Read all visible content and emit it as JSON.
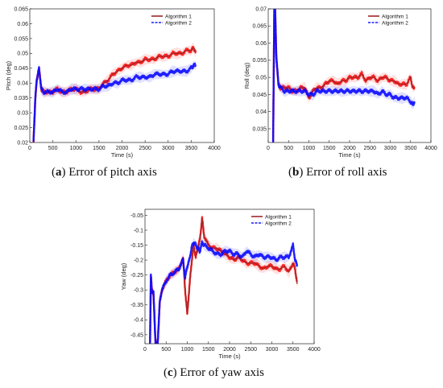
{
  "chart_data": [
    {
      "type": "line",
      "id": "pitch",
      "caption_letter": "a",
      "caption_text": "Error of pitch axis",
      "xlabel": "Time (s)",
      "ylabel": "Pitch (deg)",
      "xlim": [
        0,
        4000
      ],
      "ylim": [
        0.02,
        0.065
      ],
      "xticks": [
        0,
        500,
        1000,
        1500,
        2000,
        2500,
        3000,
        3500,
        4000
      ],
      "xtick_labels": [
        "0",
        "500",
        "1000",
        "1500",
        "2000",
        "2500",
        "3000",
        "3500",
        "4000"
      ],
      "yticks": [
        0.02,
        0.025,
        0.03,
        0.035,
        0.04,
        0.045,
        0.05,
        0.055,
        0.06,
        0.065
      ],
      "ytick_labels": [
        "0.02",
        "0.025",
        "0.03",
        "0.035",
        "0.04",
        "0.045",
        "0.05",
        "0.055",
        "0.06",
        "0.065"
      ],
      "legend_position": "top-right",
      "series": [
        {
          "name": "Algorithm 1",
          "color": "#a0282a",
          "band_color": "#ff0000",
          "dashed": false,
          "x": [
            80,
            120,
            150,
            200,
            250,
            300,
            400,
            500,
            600,
            700,
            800,
            900,
            1000,
            1100,
            1200,
            1300,
            1400,
            1500,
            1600,
            1700,
            1800,
            1900,
            2000,
            2100,
            2200,
            2300,
            2400,
            2500,
            2600,
            2700,
            2800,
            2900,
            3000,
            3100,
            3200,
            3300,
            3400,
            3500,
            3550,
            3600
          ],
          "y": [
            0.02,
            0.035,
            0.041,
            0.045,
            0.038,
            0.037,
            0.037,
            0.037,
            0.038,
            0.037,
            0.037,
            0.038,
            0.038,
            0.037,
            0.037,
            0.038,
            0.038,
            0.038,
            0.04,
            0.041,
            0.043,
            0.044,
            0.045,
            0.046,
            0.046,
            0.047,
            0.047,
            0.048,
            0.048,
            0.048,
            0.049,
            0.049,
            0.049,
            0.05,
            0.05,
            0.05,
            0.051,
            0.051,
            0.052,
            0.05
          ]
        },
        {
          "name": "Algorithm 2",
          "color": "#1a1aff",
          "band_color": "#0000ff",
          "dashed": true,
          "x": [
            80,
            120,
            150,
            200,
            250,
            300,
            400,
            500,
            600,
            700,
            800,
            900,
            1000,
            1100,
            1200,
            1300,
            1400,
            1500,
            1600,
            1700,
            1800,
            1900,
            2000,
            2100,
            2200,
            2300,
            2400,
            2500,
            2600,
            2700,
            2800,
            2900,
            3000,
            3100,
            3200,
            3300,
            3400,
            3500,
            3550,
            3600
          ],
          "y": [
            0.02,
            0.035,
            0.041,
            0.045,
            0.038,
            0.037,
            0.037,
            0.037,
            0.038,
            0.037,
            0.037,
            0.038,
            0.038,
            0.038,
            0.038,
            0.038,
            0.038,
            0.038,
            0.039,
            0.039,
            0.04,
            0.04,
            0.041,
            0.041,
            0.041,
            0.042,
            0.042,
            0.042,
            0.042,
            0.043,
            0.043,
            0.043,
            0.043,
            0.044,
            0.044,
            0.044,
            0.044,
            0.045,
            0.046,
            0.046
          ]
        }
      ]
    },
    {
      "type": "line",
      "id": "roll",
      "caption_letter": "b",
      "caption_text": "Error of roll axis",
      "xlabel": "Time (s)",
      "ylabel": "Roll (deg)",
      "xlim": [
        0,
        4000
      ],
      "ylim": [
        0.031,
        0.07
      ],
      "xticks": [
        0,
        500,
        1000,
        1500,
        2000,
        2500,
        3000,
        3500,
        4000
      ],
      "xtick_labels": [
        "0",
        "500",
        "1000",
        "1500",
        "2000",
        "2500",
        "3000",
        "3500",
        "4000"
      ],
      "yticks": [
        0.035,
        0.04,
        0.045,
        0.05,
        0.055,
        0.06,
        0.065,
        0.07
      ],
      "ytick_labels": [
        "0.035",
        "0.04",
        "0.045",
        "0.05",
        "0.055",
        "0.06",
        "0.065",
        "0.07"
      ],
      "legend_position": "top-right",
      "series": [
        {
          "name": "Algorithm 1",
          "color": "#a0282a",
          "band_color": "#ff0000",
          "dashed": false,
          "x": [
            120,
            150,
            170,
            200,
            250,
            300,
            400,
            500,
            600,
            700,
            800,
            900,
            1000,
            1100,
            1200,
            1300,
            1400,
            1500,
            1600,
            1700,
            1800,
            1900,
            2000,
            2100,
            2200,
            2300,
            2400,
            2500,
            2600,
            2700,
            2800,
            2900,
            3000,
            3100,
            3200,
            3300,
            3400,
            3500,
            3550,
            3600
          ],
          "y": [
            0.031,
            0.07,
            0.07,
            0.056,
            0.048,
            0.047,
            0.047,
            0.047,
            0.046,
            0.046,
            0.047,
            0.047,
            0.044,
            0.046,
            0.047,
            0.047,
            0.048,
            0.049,
            0.049,
            0.048,
            0.049,
            0.049,
            0.05,
            0.05,
            0.05,
            0.051,
            0.049,
            0.05,
            0.05,
            0.049,
            0.05,
            0.05,
            0.049,
            0.049,
            0.048,
            0.048,
            0.048,
            0.05,
            0.047,
            0.047
          ]
        },
        {
          "name": "Algorithm 2",
          "color": "#1a1aff",
          "band_color": "#0000ff",
          "dashed": true,
          "x": [
            120,
            150,
            170,
            200,
            250,
            300,
            400,
            500,
            600,
            700,
            800,
            900,
            1000,
            1100,
            1200,
            1300,
            1400,
            1500,
            1600,
            1700,
            1800,
            1900,
            2000,
            2100,
            2200,
            2300,
            2400,
            2500,
            2600,
            2700,
            2800,
            2900,
            3000,
            3100,
            3200,
            3300,
            3400,
            3500,
            3550,
            3600
          ],
          "y": [
            0.031,
            0.07,
            0.07,
            0.056,
            0.048,
            0.047,
            0.046,
            0.046,
            0.046,
            0.046,
            0.046,
            0.046,
            0.045,
            0.045,
            0.046,
            0.046,
            0.046,
            0.046,
            0.046,
            0.046,
            0.046,
            0.046,
            0.046,
            0.046,
            0.046,
            0.046,
            0.046,
            0.046,
            0.046,
            0.045,
            0.046,
            0.045,
            0.045,
            0.044,
            0.044,
            0.044,
            0.044,
            0.043,
            0.042,
            0.043
          ]
        }
      ]
    },
    {
      "type": "line",
      "id": "yaw",
      "caption_letter": "c",
      "caption_text": "Error of yaw axis",
      "xlabel": "Time (s)",
      "ylabel": "Yaw (deg)",
      "xlim": [
        0,
        4000
      ],
      "ylim": [
        -0.48,
        -0.03
      ],
      "xticks": [
        0,
        500,
        1000,
        1500,
        2000,
        2500,
        3000,
        3500,
        4000
      ],
      "xtick_labels": [
        "0",
        "500",
        "1000",
        "1500",
        "2000",
        "2500",
        "3000",
        "3500",
        "4000"
      ],
      "yticks": [
        -0.45,
        -0.4,
        -0.35,
        -0.3,
        -0.25,
        -0.2,
        -0.15,
        -0.1,
        -0.05
      ],
      "ytick_labels": [
        "-0.45",
        "-0.4",
        "-0.35",
        "-0.3",
        "-0.25",
        "-0.2",
        "-0.15",
        "-0.1",
        "-0.05"
      ],
      "legend_position": "top-right",
      "series": [
        {
          "name": "Algorithm 1",
          "color": "#a0282a",
          "band_color": "#ff0000",
          "dashed": false,
          "x": [
            120,
            140,
            160,
            200,
            250,
            300,
            350,
            400,
            500,
            600,
            700,
            800,
            900,
            950,
            1000,
            1050,
            1100,
            1150,
            1200,
            1250,
            1300,
            1350,
            1400,
            1500,
            1600,
            1700,
            1800,
            1900,
            2000,
            2100,
            2200,
            2300,
            2400,
            2500,
            2600,
            2700,
            2800,
            2900,
            3000,
            3100,
            3200,
            3300,
            3400,
            3500,
            3550,
            3600
          ],
          "y": [
            -0.48,
            -0.25,
            -0.3,
            -0.31,
            -0.48,
            -0.48,
            -0.34,
            -0.3,
            -0.27,
            -0.25,
            -0.24,
            -0.23,
            -0.19,
            -0.3,
            -0.38,
            -0.29,
            -0.21,
            -0.15,
            -0.19,
            -0.16,
            -0.13,
            -0.06,
            -0.12,
            -0.15,
            -0.16,
            -0.16,
            -0.17,
            -0.18,
            -0.19,
            -0.2,
            -0.19,
            -0.2,
            -0.21,
            -0.21,
            -0.21,
            -0.22,
            -0.23,
            -0.22,
            -0.22,
            -0.23,
            -0.23,
            -0.22,
            -0.24,
            -0.21,
            -0.23,
            -0.28
          ]
        },
        {
          "name": "Algorithm 2",
          "color": "#1a1aff",
          "band_color": "#0000ff",
          "dashed": true,
          "x": [
            120,
            140,
            160,
            200,
            250,
            300,
            350,
            400,
            500,
            600,
            700,
            800,
            900,
            950,
            1000,
            1050,
            1100,
            1150,
            1200,
            1250,
            1300,
            1350,
            1400,
            1500,
            1600,
            1700,
            1800,
            1900,
            2000,
            2100,
            2200,
            2300,
            2400,
            2500,
            2600,
            2700,
            2800,
            2900,
            3000,
            3100,
            3200,
            3300,
            3400,
            3500,
            3550,
            3600
          ],
          "y": [
            -0.48,
            -0.25,
            -0.3,
            -0.31,
            -0.48,
            -0.48,
            -0.34,
            -0.3,
            -0.27,
            -0.25,
            -0.24,
            -0.23,
            -0.2,
            -0.26,
            -0.22,
            -0.2,
            -0.16,
            -0.14,
            -0.15,
            -0.16,
            -0.17,
            -0.14,
            -0.15,
            -0.16,
            -0.17,
            -0.18,
            -0.18,
            -0.17,
            -0.17,
            -0.18,
            -0.18,
            -0.19,
            -0.17,
            -0.18,
            -0.19,
            -0.18,
            -0.19,
            -0.19,
            -0.19,
            -0.2,
            -0.19,
            -0.19,
            -0.19,
            -0.15,
            -0.2,
            -0.22
          ]
        }
      ]
    }
  ]
}
